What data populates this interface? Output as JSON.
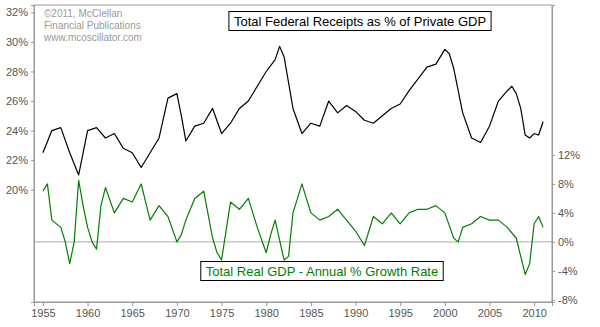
{
  "chart_data": {
    "type": "line",
    "annotations": [
      "©2011, McClellan",
      "Financial Publications",
      "www.mcoscillator.com"
    ],
    "xlim": [
      1954,
      2012
    ],
    "xticks": [
      1955,
      1960,
      1965,
      1970,
      1975,
      1980,
      1985,
      1990,
      1995,
      2000,
      2005,
      2010
    ],
    "ylim": [
      12.4,
      32.5
    ],
    "yticks": [
      {
        "value": 20,
        "label": "20%"
      },
      {
        "value": 22,
        "label": "22%"
      },
      {
        "value": 24,
        "label": "24%"
      },
      {
        "value": 26,
        "label": "26%"
      },
      {
        "value": 28,
        "label": "28%"
      },
      {
        "value": 30,
        "label": "30%"
      },
      {
        "value": 32,
        "label": "32%"
      }
    ],
    "y2lim": [
      -8.3,
      32.7
    ],
    "y2ticks": [
      {
        "value": -8,
        "label": "-8%"
      },
      {
        "value": -4,
        "label": "-4%"
      },
      {
        "value": 0,
        "label": "0%"
      },
      {
        "value": 4,
        "label": "4%"
      },
      {
        "value": 8,
        "label": "8%"
      },
      {
        "value": 12,
        "label": "12%"
      }
    ],
    "grid": false,
    "series": [
      {
        "name": "Total Federal Receipts as % of Private GDP",
        "color": "#000000",
        "x": [
          1955,
          1956,
          1957,
          1958,
          1959,
          1959.5,
          1960,
          1961,
          1962,
          1963,
          1964,
          1965,
          1966,
          1967,
          1968,
          1969,
          1970,
          1970.5,
          1971,
          1972,
          1973,
          1974,
          1975,
          1976,
          1977,
          1978,
          1979,
          1980,
          1981,
          1981.5,
          1982,
          1983,
          1984,
          1985,
          1986,
          1987,
          1988,
          1989,
          1990,
          1991,
          1992,
          1993,
          1994,
          1995,
          1996,
          1997,
          1998,
          1999,
          2000,
          2000.5,
          2001,
          2002,
          2003,
          2004,
          2005,
          2006,
          2007,
          2007.5,
          2008,
          2008.5,
          2009,
          2009.5,
          2010,
          2010.5,
          2011
        ],
        "values": [
          22.5,
          24,
          24.2,
          22.5,
          21,
          22.5,
          24,
          24.2,
          23.5,
          23.8,
          22.8,
          22.5,
          21.5,
          22.5,
          23.5,
          26.2,
          26.5,
          25,
          23.3,
          24.3,
          24.5,
          25.5,
          23.8,
          24.5,
          25.5,
          26,
          27,
          28,
          28.8,
          29.7,
          29,
          25.5,
          23.8,
          24.5,
          24.3,
          26,
          25.2,
          25.7,
          25.3,
          24.7,
          24.5,
          25,
          25.5,
          25.8,
          26.7,
          27.5,
          28.3,
          28.5,
          29.5,
          29.2,
          28.2,
          25.2,
          23.5,
          23.2,
          24.3,
          26,
          26.7,
          27,
          26.5,
          25.5,
          23.7,
          23.5,
          23.8,
          23.7,
          24.6
        ]
      },
      {
        "name": "Total Real GDP - Annual % Growth Rate",
        "color": "#008000",
        "axis": "y2",
        "x": [
          1955,
          1955.5,
          1956,
          1957,
          1957.5,
          1958,
          1958.5,
          1959,
          1959.5,
          1960,
          1960.5,
          1961,
          1961.5,
          1962,
          1963,
          1964,
          1965,
          1966,
          1967,
          1968,
          1969,
          1970,
          1970.5,
          1971,
          1972,
          1973,
          1974,
          1974.5,
          1975,
          1976,
          1977,
          1978,
          1979,
          1980,
          1980.5,
          1981,
          1982,
          1982.5,
          1983,
          1984,
          1985,
          1986,
          1987,
          1988,
          1989,
          1990,
          1991,
          1992,
          1993,
          1994,
          1995,
          1996,
          1997,
          1998,
          1999,
          2000,
          2001,
          2001.5,
          2002,
          2003,
          2004,
          2005,
          2006,
          2007,
          2008,
          2008.5,
          2009,
          2009.5,
          2010,
          2010.5,
          2011
        ],
        "values": [
          7,
          8,
          3,
          2,
          0,
          -3,
          0,
          8.5,
          5,
          2,
          0,
          -1,
          5,
          7.5,
          4,
          6,
          5.5,
          8,
          3,
          5,
          3.5,
          0,
          1,
          3,
          6,
          7,
          0.5,
          -1.5,
          -2.5,
          5.5,
          4.5,
          6,
          2,
          -1.5,
          1,
          3,
          -2.5,
          -2,
          4,
          8,
          4,
          3,
          3.5,
          4.5,
          3,
          1.5,
          -0.5,
          3.5,
          2.5,
          4,
          2.5,
          4,
          4.5,
          4.5,
          5,
          4,
          0.5,
          0,
          2,
          2.5,
          3.5,
          3,
          3,
          2,
          0.5,
          -2,
          -4.5,
          -3,
          2.5,
          3.5,
          2
        ]
      }
    ]
  }
}
